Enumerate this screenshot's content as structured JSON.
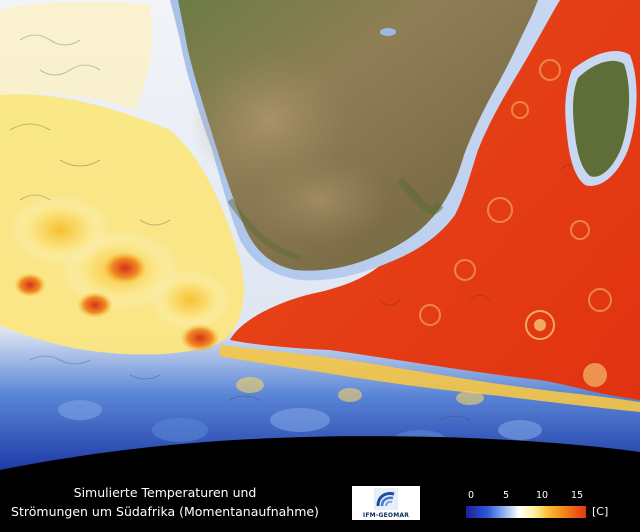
{
  "caption": {
    "line1": "Simulierte Temperaturen und",
    "line2": "Strömungen um Südafrika (Momentanaufnahme)"
  },
  "logo": {
    "text": "IFM-GEOMAR"
  },
  "legend": {
    "ticks": [
      "0",
      "5",
      "10",
      "15"
    ],
    "unit": "[C]",
    "colors": [
      "#1b1f9e",
      "#2f58d8",
      "#9ab8f0",
      "#ffffff",
      "#fff3a8",
      "#f8c038",
      "#f07a18",
      "#e23a12"
    ]
  }
}
